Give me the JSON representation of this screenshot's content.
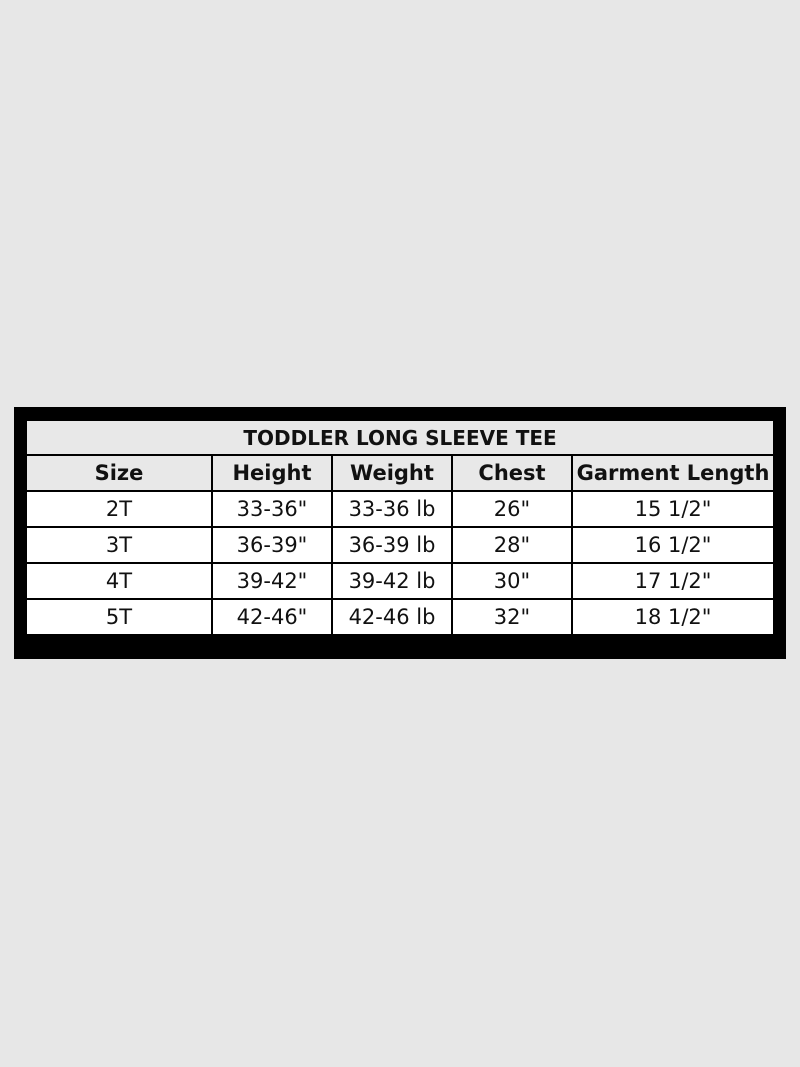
{
  "table": {
    "title": "TODDLER LONG SLEEVE TEE",
    "headers": [
      "Size",
      "Height",
      "Weight",
      "Chest",
      "Garment Length"
    ],
    "rows": [
      [
        "2T",
        "33-36\"",
        "33-36 lb",
        "26\"",
        "15 1/2\""
      ],
      [
        "3T",
        "36-39\"",
        "36-39 lb",
        "28\"",
        "16 1/2\""
      ],
      [
        "4T",
        "39-42\"",
        "39-42 lb",
        "30\"",
        "17 1/2\""
      ],
      [
        "5T",
        "42-46\"",
        "42-46 lb",
        "32\"",
        "18 1/2\""
      ]
    ]
  },
  "colors": {
    "background": "#e7e7e7",
    "frame": "#000000",
    "header_bg": "#e8e8e8",
    "cell_bg": "#ffffff"
  }
}
